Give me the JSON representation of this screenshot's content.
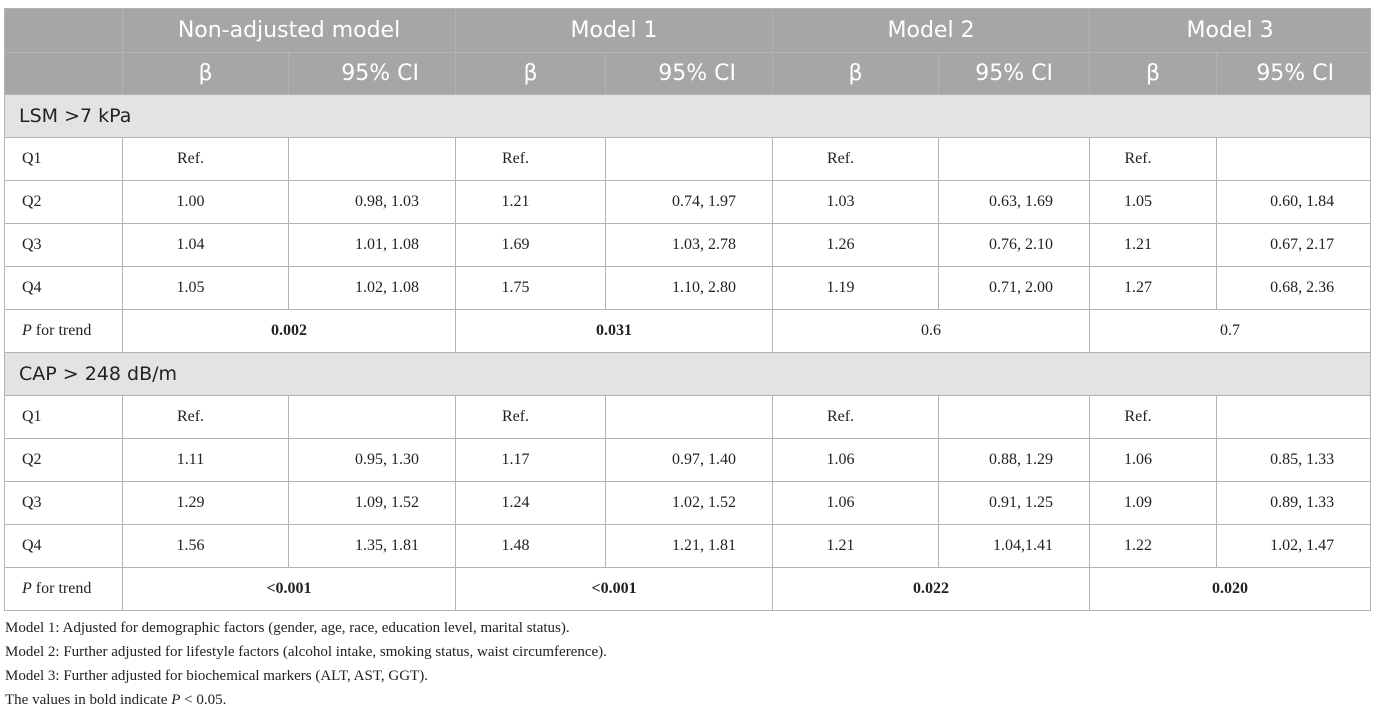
{
  "header": {
    "models": [
      "Non-adjusted model",
      "Model 1",
      "Model 2",
      "Model 3"
    ],
    "beta_label": "β",
    "ci_label": "95% CI"
  },
  "sections": [
    {
      "title": "LSM >7 kPa",
      "rows": [
        {
          "label": "Q1",
          "cells": [
            "Ref.",
            "",
            "Ref.",
            "",
            "Ref.",
            "",
            "Ref.",
            ""
          ]
        },
        {
          "label": "Q2",
          "cells": [
            "1.00",
            "0.98, 1.03",
            "1.21",
            "0.74, 1.97",
            "1.03",
            "0.63, 1.69",
            "1.05",
            "0.60, 1.84"
          ]
        },
        {
          "label": "Q3",
          "cells": [
            "1.04",
            "1.01, 1.08",
            "1.69",
            "1.03, 2.78",
            "1.26",
            "0.76, 2.10",
            "1.21",
            "0.67, 2.17"
          ]
        },
        {
          "label": "Q4",
          "cells": [
            "1.05",
            "1.02, 1.08",
            "1.75",
            "1.10, 2.80",
            "1.19",
            "0.71, 2.00",
            "1.27",
            "0.68, 2.36"
          ]
        }
      ],
      "trend": {
        "label_p": "P",
        "label_rest": " for trend",
        "values": [
          "0.002",
          "0.031",
          "0.6",
          "0.7"
        ],
        "bold": [
          true,
          true,
          false,
          false
        ]
      }
    },
    {
      "title": "CAP > 248 dB/m",
      "rows": [
        {
          "label": "Q1",
          "cells": [
            "Ref.",
            "",
            "Ref.",
            "",
            "Ref.",
            "",
            "Ref.",
            ""
          ]
        },
        {
          "label": "Q2",
          "cells": [
            "1.11",
            "0.95, 1.30",
            "1.17",
            "0.97, 1.40",
            "1.06",
            "0.88, 1.29",
            "1.06",
            "0.85, 1.33"
          ]
        },
        {
          "label": "Q3",
          "cells": [
            "1.29",
            "1.09, 1.52",
            "1.24",
            "1.02, 1.52",
            "1.06",
            "0.91, 1.25",
            "1.09",
            "0.89, 1.33"
          ]
        },
        {
          "label": "Q4",
          "cells": [
            "1.56",
            "1.35, 1.81",
            "1.48",
            "1.21, 1.81",
            "1.21",
            "1.04,1.41",
            "1.22",
            "1.02, 1.47"
          ]
        }
      ],
      "trend": {
        "label_p": "P",
        "label_rest": " for trend",
        "values": [
          "<0.001",
          "<0.001",
          "0.022",
          "0.020"
        ],
        "bold": [
          true,
          true,
          true,
          true
        ]
      }
    }
  ],
  "notes": {
    "model1": "Model 1: Adjusted for demographic factors (gender, age, race, education level, marital status).",
    "model2": "Model 2: Further adjusted for lifestyle factors (alcohol intake, smoking status, waist circumference).",
    "model3": "Model 3: Further adjusted for biochemical markers (ALT, AST, GGT).",
    "bold_prefix": "The values in bold indicate ",
    "bold_p": "P",
    "bold_suffix": " < 0.05."
  }
}
